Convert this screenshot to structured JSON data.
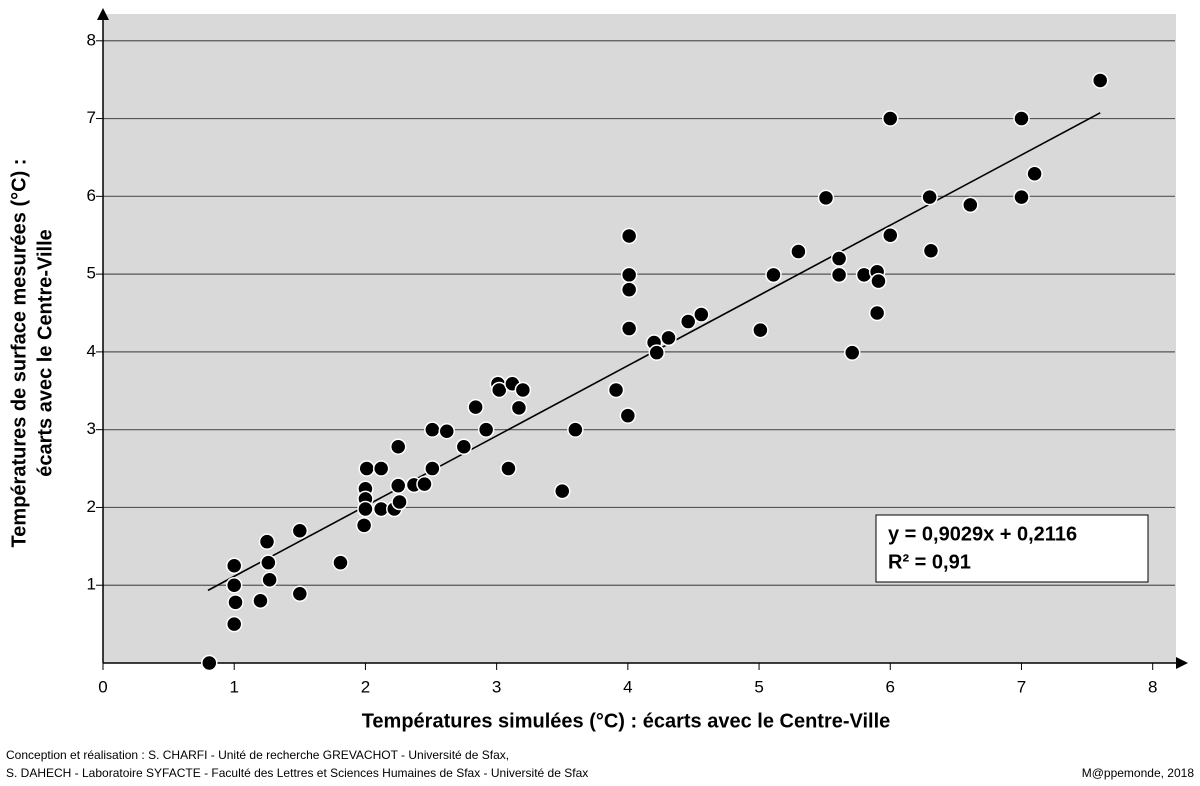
{
  "chart_data": {
    "type": "scatter",
    "x_label": "Températures simulées (°C) : écarts avec le Centre-Ville",
    "y_label": [
      "Températures de surface mesurées (°C) :",
      "écarts avec le Centre-Ville"
    ],
    "x": [
      0.81,
      1.0,
      1.0,
      1.01,
      1.0,
      1.2,
      1.25,
      1.26,
      1.27,
      1.5,
      1.5,
      1.81,
      2.01,
      2.0,
      2.0,
      2.0,
      1.99,
      2.12,
      2.12,
      2.22,
      2.25,
      2.25,
      2.26,
      2.37,
      2.45,
      2.51,
      2.51,
      2.62,
      2.75,
      2.84,
      2.92,
      3.01,
      3.02,
      3.12,
      3.09,
      3.17,
      3.2,
      3.5,
      3.6,
      3.91,
      4.01,
      4.01,
      4.01,
      4.01,
      4.0,
      4.2,
      4.22,
      4.31,
      4.46,
      4.56,
      5.01,
      5.11,
      5.3,
      5.51,
      5.61,
      5.61,
      5.71,
      5.8,
      5.9,
      5.91,
      5.9,
      6.0,
      6.0,
      6.3,
      6.31,
      6.61,
      7.0,
      7.0,
      7.1,
      7.6
    ],
    "series": [
      {
        "color": "#000000",
        "values": [
          0,
          1.25,
          1.0,
          0.78,
          0.5,
          0.8,
          1.56,
          1.29,
          1.07,
          1.7,
          0.89,
          1.29,
          2.5,
          2.24,
          2.11,
          1.98,
          1.77,
          2.5,
          1.98,
          1.98,
          2.78,
          2.28,
          2.07,
          2.29,
          2.3,
          3.0,
          2.5,
          2.98,
          2.78,
          3.29,
          3.0,
          3.59,
          3.51,
          3.59,
          2.5,
          3.28,
          3.51,
          2.21,
          3.0,
          3.51,
          5.49,
          4.99,
          4.8,
          4.3,
          3.18,
          4.12,
          3.99,
          4.18,
          4.39,
          4.48,
          4.28,
          4.99,
          5.29,
          5.98,
          5.2,
          4.99,
          3.99,
          4.99,
          5.03,
          4.91,
          4.5,
          7.0,
          5.5,
          5.99,
          5.3,
          5.89,
          7.0,
          5.99,
          6.29,
          7.49
        ]
      }
    ],
    "trend": {
      "x": [
        0.8,
        7.6
      ],
      "slope": 0.9029,
      "intercept": 0.2116
    },
    "annotations": [
      "y = 0,9029x + 0,2116",
      "R² = 0,91"
    ],
    "xlim": [
      0,
      8.17
    ],
    "ylim": [
      0,
      8.37
    ],
    "xticks": [
      0,
      1,
      2,
      3,
      4,
      5,
      6,
      7,
      8
    ],
    "yticks": [
      1,
      2,
      3,
      4,
      5,
      6,
      7,
      8
    ],
    "grid": true
  },
  "footer": {
    "credits": [
      "Conception et réalisation : S. CHARFI -  Unité de recherche GREVACHOT - Université de Sfax,",
      "S. DAHECH - Laboratoire SYFACTE - Faculté des Lettres et Sciences Humaines de Sfax - Université de Sfax"
    ],
    "source": "M@ppemonde, 2018"
  }
}
